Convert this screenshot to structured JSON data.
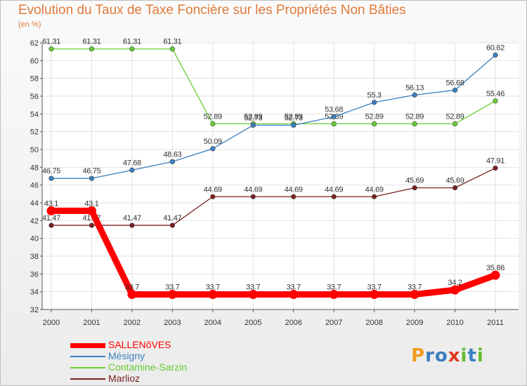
{
  "chart_data": {
    "type": "line",
    "title": "Evolution du Taux de Taxe Foncière sur les Propriétés Non Bâties",
    "subtitle": "(en %)",
    "x": [
      "2000",
      "2001",
      "2002",
      "2003",
      "2004",
      "2005",
      "2006",
      "2007",
      "2008",
      "2009",
      "2010",
      "2011"
    ],
    "ylim": [
      32,
      62
    ],
    "yticks": [
      32,
      34,
      36,
      38,
      40,
      42,
      44,
      46,
      48,
      50,
      52,
      54,
      56,
      58,
      60,
      62
    ],
    "grid": true,
    "legend_position": "bottom-left",
    "series": [
      {
        "name": "Marlioz",
        "color": "#7a1f1f",
        "values": [
          41.47,
          41.47,
          41.47,
          41.47,
          44.69,
          44.69,
          44.69,
          44.69,
          44.69,
          45.69,
          45.69,
          47.91
        ],
        "labels": [
          "41.47",
          "41.47",
          "41.47",
          "41.47",
          "44.69",
          "44.69",
          "44.69",
          "44.69",
          "44.69",
          "45.69",
          "45.69",
          "47.91"
        ]
      },
      {
        "name": "Contamine-Sarzin",
        "color": "#66cc33",
        "values": [
          61.31,
          61.31,
          61.31,
          61.31,
          52.89,
          52.89,
          52.89,
          52.89,
          52.89,
          52.89,
          52.89,
          55.46
        ],
        "labels": [
          "61.31",
          "61.31",
          "61.31",
          "61.31",
          "52.89",
          "52.89",
          "52.89",
          "52.89",
          "52.89",
          "52.89",
          "52.89",
          "55.46"
        ]
      },
      {
        "name": "Mésigny",
        "color": "#3a7fc1",
        "values": [
          46.75,
          46.75,
          47.68,
          48.63,
          50.09,
          52.73,
          52.73,
          53.68,
          55.3,
          56.13,
          56.68,
          60.62
        ],
        "labels": [
          "46.75",
          "46.75",
          "47.68",
          "48.63",
          "50.09",
          "52.73",
          "52.73",
          "53.68",
          "55.3",
          "56.13",
          "56.68",
          "60.62"
        ]
      },
      {
        "name": "SALLENôVES",
        "color": "#ff0000",
        "thick": true,
        "values": [
          43.1,
          43.1,
          33.7,
          33.7,
          33.7,
          33.7,
          33.7,
          33.7,
          33.7,
          33.7,
          34.2,
          35.86
        ],
        "labels": [
          "43.1",
          "43.1",
          "33.7",
          "33.7",
          "33.7",
          "33.7",
          "33.7",
          "33.7",
          "33.7",
          "33.7",
          "34.2",
          "35.86"
        ]
      }
    ]
  },
  "legend": {
    "items": [
      {
        "label": "SALLENôVES",
        "color": "#ff0000",
        "thick": true
      },
      {
        "label": "Mésigny",
        "color": "#3a7fc1"
      },
      {
        "label": "Contamine-Sarzin",
        "color": "#66cc33"
      },
      {
        "label": "Marlioz",
        "color": "#7a1f1f"
      }
    ]
  },
  "logo": {
    "text": "Proxiti",
    "letters": [
      "P",
      "r",
      "o",
      "x",
      "i",
      "t",
      "i"
    ],
    "colors": [
      "#f39a1e",
      "#3a7fc1",
      "#3a7fc1",
      "#e23a1e",
      "#66bb33",
      "#3a7fc1",
      "#66bb33"
    ]
  }
}
